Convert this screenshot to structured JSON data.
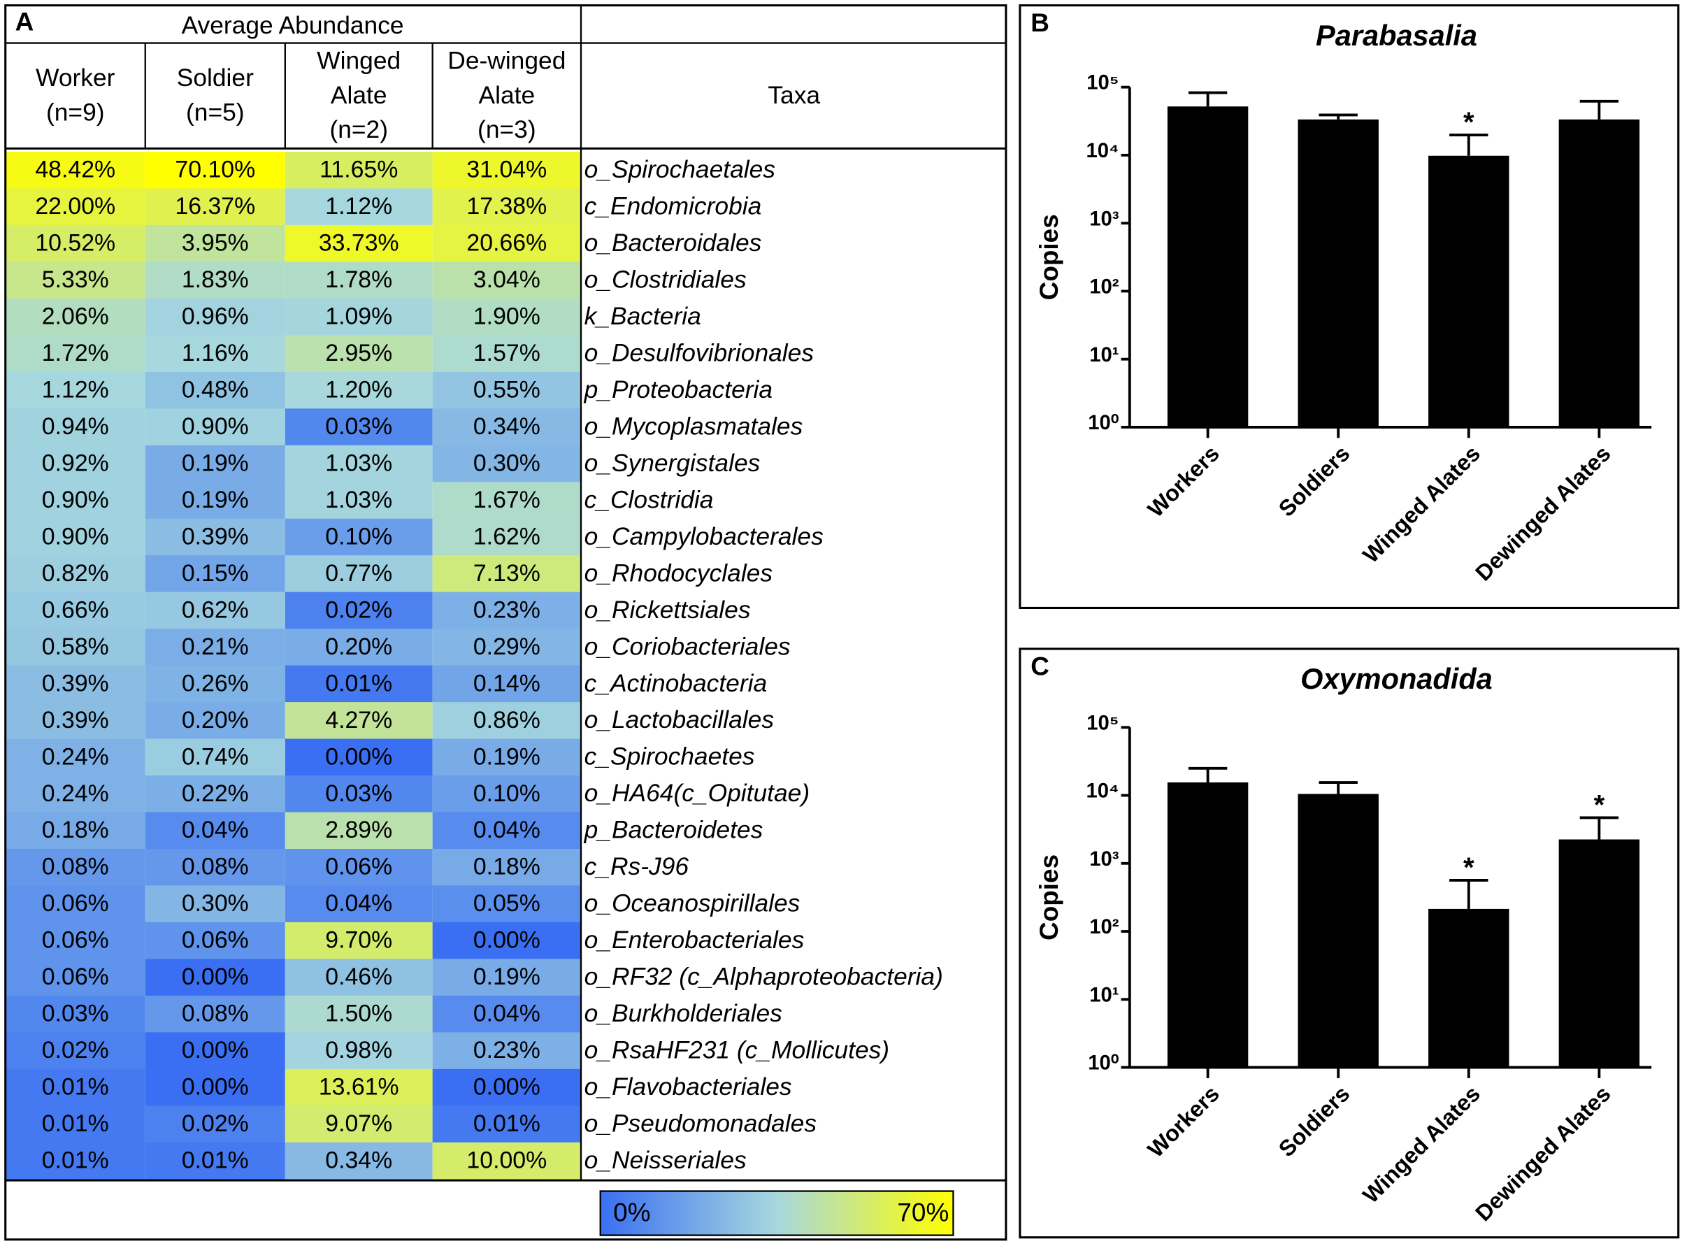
{
  "chart_data": [
    {
      "type": "heatmap",
      "panel": "A",
      "group_header": "Average Abundance",
      "taxa_header": "Taxa",
      "column_headers": [
        [
          "Worker",
          "(n=9)"
        ],
        [
          "Soldier",
          "(n=5)"
        ],
        [
          "Winged",
          "Alate",
          "(n=2)"
        ],
        [
          "De-winged",
          "Alate",
          "(n=3)"
        ]
      ],
      "rows": [
        "o_Spirochaetales",
        "c_Endomicrobia",
        "o_Bacteroidales",
        "o_Clostridiales",
        "k_Bacteria",
        "o_Desulfovibrionales",
        "p_Proteobacteria",
        "o_Mycoplasmatales",
        "o_Synergistales",
        "c_Clostridia",
        "o_Campylobacterales",
        "o_Rhodocyclales",
        "o_Rickettsiales",
        "o_Coriobacteriales",
        "c_Actinobacteria",
        "o_Lactobacillales",
        "c_Spirochaetes",
        "o_HA64(c_Opitutae)",
        "p_Bacteroidetes",
        "c_Rs-J96",
        "o_Oceanospirillales",
        "o_Enterobacteriales",
        "o_RF32 (c_Alphaproteobacteria)",
        "o_Burkholderiales",
        "o_RsaHF231 (c_Mollicutes)",
        "o_Flavobacteriales",
        "o_Pseudomonadales",
        "o_Neisseriales"
      ],
      "values": [
        [
          48.42,
          70.1,
          11.65,
          31.04
        ],
        [
          22.0,
          16.37,
          1.12,
          17.38
        ],
        [
          10.52,
          3.95,
          33.73,
          20.66
        ],
        [
          5.33,
          1.83,
          1.78,
          3.04
        ],
        [
          2.06,
          0.96,
          1.09,
          1.9
        ],
        [
          1.72,
          1.16,
          2.95,
          1.57
        ],
        [
          1.12,
          0.48,
          1.2,
          0.55
        ],
        [
          0.94,
          0.9,
          0.03,
          0.34
        ],
        [
          0.92,
          0.19,
          1.03,
          0.3
        ],
        [
          0.9,
          0.19,
          1.03,
          1.67
        ],
        [
          0.9,
          0.39,
          0.1,
          1.62
        ],
        [
          0.82,
          0.15,
          0.77,
          7.13
        ],
        [
          0.66,
          0.62,
          0.02,
          0.23
        ],
        [
          0.58,
          0.21,
          0.2,
          0.29
        ],
        [
          0.39,
          0.26,
          0.01,
          0.14
        ],
        [
          0.39,
          0.2,
          4.27,
          0.86
        ],
        [
          0.24,
          0.74,
          0.0,
          0.19
        ],
        [
          0.24,
          0.22,
          0.03,
          0.1
        ],
        [
          0.18,
          0.04,
          2.89,
          0.04
        ],
        [
          0.08,
          0.08,
          0.06,
          0.18
        ],
        [
          0.06,
          0.3,
          0.04,
          0.05
        ],
        [
          0.06,
          0.06,
          9.7,
          0.0
        ],
        [
          0.06,
          0.0,
          0.46,
          0.19
        ],
        [
          0.03,
          0.08,
          1.5,
          0.04
        ],
        [
          0.02,
          0.0,
          0.98,
          0.23
        ],
        [
          0.01,
          0.0,
          13.61,
          0.0
        ],
        [
          0.01,
          0.02,
          9.07,
          0.01
        ],
        [
          0.01,
          0.01,
          0.34,
          10.0
        ]
      ],
      "value_labels": [
        [
          "48.42%",
          "70.10%",
          "11.65%",
          "31.04%"
        ],
        [
          "22.00%",
          "16.37%",
          "1.12%",
          "17.38%"
        ],
        [
          "10.52%",
          "3.95%",
          "33.73%",
          "20.66%"
        ],
        [
          "5.33%",
          "1.83%",
          "1.78%",
          "3.04%"
        ],
        [
          "2.06%",
          "0.96%",
          "1.09%",
          "1.90%"
        ],
        [
          "1.72%",
          "1.16%",
          "2.95%",
          "1.57%"
        ],
        [
          "1.12%",
          "0.48%",
          "1.20%",
          "0.55%"
        ],
        [
          "0.94%",
          "0.90%",
          "0.03%",
          "0.34%"
        ],
        [
          "0.92%",
          "0.19%",
          "1.03%",
          "0.30%"
        ],
        [
          "0.90%",
          "0.19%",
          "1.03%",
          "1.67%"
        ],
        [
          "0.90%",
          "0.39%",
          "0.10%",
          "1.62%"
        ],
        [
          "0.82%",
          "0.15%",
          "0.77%",
          "7.13%"
        ],
        [
          "0.66%",
          "0.62%",
          "0.02%",
          "0.23%"
        ],
        [
          "0.58%",
          "0.21%",
          "0.20%",
          "0.29%"
        ],
        [
          "0.39%",
          "0.26%",
          "0.01%",
          "0.14%"
        ],
        [
          "0.39%",
          "0.20%",
          "4.27%",
          "0.86%"
        ],
        [
          "0.24%",
          "0.74%",
          "0.00%",
          "0.19%"
        ],
        [
          "0.24%",
          "0.22%",
          "0.03%",
          "0.10%"
        ],
        [
          "0.18%",
          "0.04%",
          "2.89%",
          "0.04%"
        ],
        [
          "0.08%",
          "0.08%",
          "0.06%",
          "0.18%"
        ],
        [
          "0.06%",
          "0.30%",
          "0.04%",
          "0.05%"
        ],
        [
          "0.06%",
          "0.06%",
          "9.70%",
          "0.00%"
        ],
        [
          "0.06%",
          "0.00%",
          "0.46%",
          "0.19%"
        ],
        [
          "0.03%",
          "0.08%",
          "1.50%",
          "0.04%"
        ],
        [
          "0.02%",
          "0.00%",
          "0.98%",
          "0.23%"
        ],
        [
          "0.01%",
          "0.00%",
          "13.61%",
          "0.00%"
        ],
        [
          "0.01%",
          "0.02%",
          "9.07%",
          "0.01%"
        ],
        [
          "0.01%",
          "0.01%",
          "0.34%",
          "10.00%"
        ]
      ],
      "colorbar": {
        "colors": [
          "#3a6ff3",
          "#a7d8de",
          "#ffff00"
        ],
        "ticks": [
          {
            "value": 0,
            "label": "0%"
          },
          {
            "value": 70,
            "label": "70%"
          }
        ]
      }
    },
    {
      "type": "bar",
      "panel": "B",
      "title": "Parabasalia",
      "ylabel": "Copies",
      "log_scale": true,
      "color": "#000000",
      "categories": [
        "Workers",
        "Soldiers",
        "Winged Alates",
        "Dewinged Alates"
      ],
      "values": [
        52000,
        33500,
        9800,
        33500
      ],
      "errors": [
        31000,
        5500,
        10000,
        28500
      ],
      "annotations": [
        null,
        null,
        "*",
        null
      ],
      "ylim": [
        1,
        100000
      ],
      "yticks": [
        {
          "value": 1,
          "label": "10⁰"
        },
        {
          "value": 10,
          "label": "10¹"
        },
        {
          "value": 100,
          "label": "10²"
        },
        {
          "value": 1000,
          "label": "10³"
        },
        {
          "value": 10000,
          "label": "10⁴"
        },
        {
          "value": 100000,
          "label": "10⁵"
        }
      ]
    },
    {
      "type": "bar",
      "panel": "C",
      "title": "Oxymonadida",
      "ylabel": "Copies",
      "log_scale": true,
      "color": "#000000",
      "categories": [
        "Workers",
        "Soldiers",
        "Winged Alates",
        "Dewinged Alates"
      ],
      "values": [
        15500,
        10500,
        214,
        2250
      ],
      "errors": [
        9500,
        5000,
        350,
        2450
      ],
      "annotations": [
        null,
        null,
        "*",
        "*"
      ],
      "ylim": [
        1,
        100000
      ],
      "yticks": [
        {
          "value": 1,
          "label": "10⁰"
        },
        {
          "value": 10,
          "label": "10¹"
        },
        {
          "value": 100,
          "label": "10²"
        },
        {
          "value": 1000,
          "label": "10³"
        },
        {
          "value": 10000,
          "label": "10⁴"
        },
        {
          "value": 100000,
          "label": "10⁵"
        }
      ]
    }
  ]
}
